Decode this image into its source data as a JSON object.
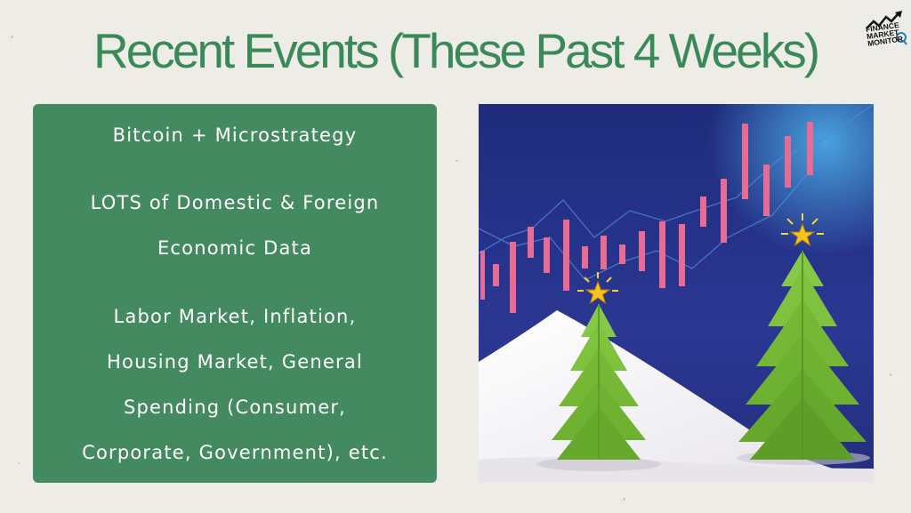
{
  "title": "Recent  Events (These Past 4 Weeks)",
  "logo": {
    "lines": [
      "FINANCE",
      "MARKET",
      "MONITOR"
    ]
  },
  "panel": {
    "lines": [
      "Bitcoin + Microstrategy",
      "LOTS of Domestic & Foreign",
      "Economic Data",
      "Labor Market, Inflation,",
      "Housing Market, General",
      "Spending (Consumer,",
      "Corporate, Government), etc."
    ]
  },
  "colors": {
    "background": "#eeece7",
    "title_green": "#3a8a59",
    "panel_green": "#438a60",
    "illustration_navy": "#2a3586",
    "candle_pink": "#e96a93",
    "tree_green": "#7ec23d"
  },
  "illustration": {
    "subject": "candlestick chart with two christmas trees on snow"
  }
}
